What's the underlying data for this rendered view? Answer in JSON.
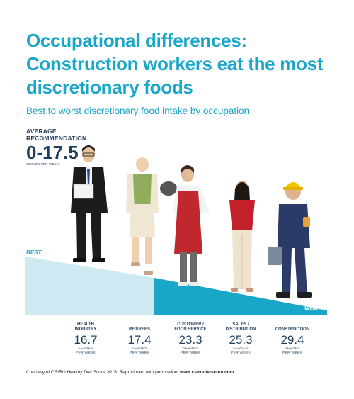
{
  "title_lines": [
    "Occupational differences:",
    "Construction workers eat the most",
    "discretionary foods"
  ],
  "subtitle": "Best to worst discretionary food intake by occupation",
  "average": {
    "label_lines": [
      "AVERAGE",
      "RECOMMENDATION"
    ],
    "value": "0-17.5",
    "unit": "SERVES PER WEEK"
  },
  "scale_labels": {
    "best": "BEST",
    "worst": "WORST"
  },
  "colors": {
    "accent": "#1aa6c9",
    "best_band": "#cfe9f2",
    "worst_band": "#1aa6c9",
    "text_dark": "#1f3f5c"
  },
  "chart_data": {
    "type": "table",
    "title": "Best to worst discretionary food intake by occupation",
    "unit": "SERVES PER WEEK",
    "categories": [
      {
        "lines": [
          "HEALTH",
          "INDUSTRY"
        ],
        "value": 16.7
      },
      {
        "lines": [
          "RETIREES"
        ],
        "value": 17.4
      },
      {
        "lines": [
          "CUSTOMER /",
          "FOOD SERVICE"
        ],
        "value": 23.3
      },
      {
        "lines": [
          "SALES /",
          "DISTRIBUTION"
        ],
        "value": 25.3
      },
      {
        "lines": [
          "CONSTRUCTION"
        ],
        "value": 29.4
      }
    ],
    "unit_lines": [
      "SERVES",
      "PER WEEK"
    ],
    "recommended_range": [
      0,
      17.5
    ]
  },
  "icons": [
    "doctor-figure",
    "retiree-figure",
    "chef-figure",
    "sales-figure",
    "construction-worker-figure"
  ],
  "credit": {
    "prefix": "Courtesy of ",
    "source": "CSIRO Healthy Diet Score 2016",
    "middle": ". Reproduced with permission. ",
    "url": "www.csirodietscore.com"
  }
}
